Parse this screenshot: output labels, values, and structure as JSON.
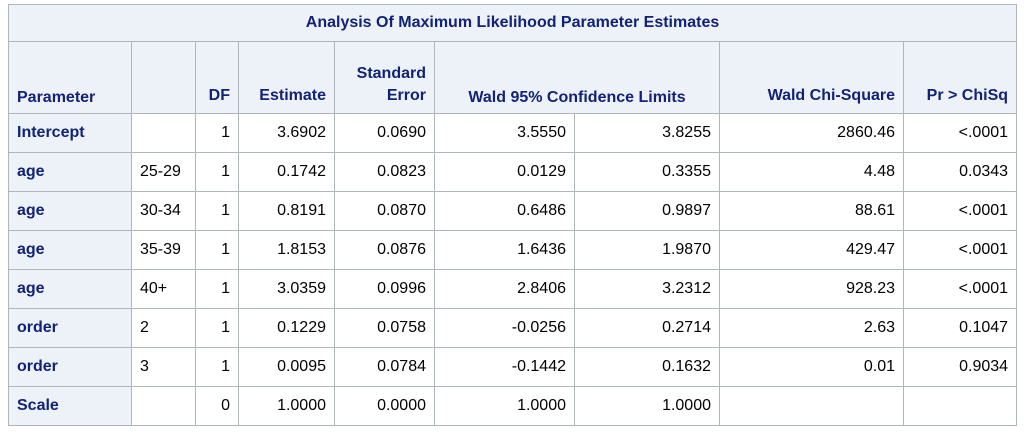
{
  "title": "Analysis Of Maximum Likelihood Parameter Estimates",
  "headers": {
    "parameter": "Parameter",
    "level": "",
    "df": "DF",
    "estimate": "Estimate",
    "stderr_line1": "Standard",
    "stderr_line2": "Error",
    "wald_ci": "Wald 95% Confidence Limits",
    "chisq": "Wald Chi-Square",
    "pvalue": "Pr > ChiSq"
  },
  "rows": [
    {
      "parameter": "Intercept",
      "level": "",
      "df": "1",
      "estimate": "3.6902",
      "stderr": "0.0690",
      "lower": "3.5550",
      "upper": "3.8255",
      "chisq": "2860.46",
      "p": "<.0001"
    },
    {
      "parameter": "age",
      "level": "25-29",
      "df": "1",
      "estimate": "0.1742",
      "stderr": "0.0823",
      "lower": "0.0129",
      "upper": "0.3355",
      "chisq": "4.48",
      "p": "0.0343"
    },
    {
      "parameter": "age",
      "level": "30-34",
      "df": "1",
      "estimate": "0.8191",
      "stderr": "0.0870",
      "lower": "0.6486",
      "upper": "0.9897",
      "chisq": "88.61",
      "p": "<.0001"
    },
    {
      "parameter": "age",
      "level": "35-39",
      "df": "1",
      "estimate": "1.8153",
      "stderr": "0.0876",
      "lower": "1.6436",
      "upper": "1.9870",
      "chisq": "429.47",
      "p": "<.0001"
    },
    {
      "parameter": "age",
      "level": "40+",
      "df": "1",
      "estimate": "3.0359",
      "stderr": "0.0996",
      "lower": "2.8406",
      "upper": "3.2312",
      "chisq": "928.23",
      "p": "<.0001"
    },
    {
      "parameter": "order",
      "level": "2",
      "df": "1",
      "estimate": "0.1229",
      "stderr": "0.0758",
      "lower": "-0.0256",
      "upper": "0.2714",
      "chisq": "2.63",
      "p": "0.1047"
    },
    {
      "parameter": "order",
      "level": "3",
      "df": "1",
      "estimate": "0.0095",
      "stderr": "0.0784",
      "lower": "-0.1442",
      "upper": "0.1632",
      "chisq": "0.01",
      "p": "0.9034"
    },
    {
      "parameter": "Scale",
      "level": "",
      "df": "0",
      "estimate": "1.0000",
      "stderr": "0.0000",
      "lower": "1.0000",
      "upper": "1.0000",
      "chisq": "",
      "p": ""
    }
  ],
  "colors": {
    "header_bg": "#edf2f9",
    "header_text": "#112277",
    "border": "#b0b7bb"
  }
}
